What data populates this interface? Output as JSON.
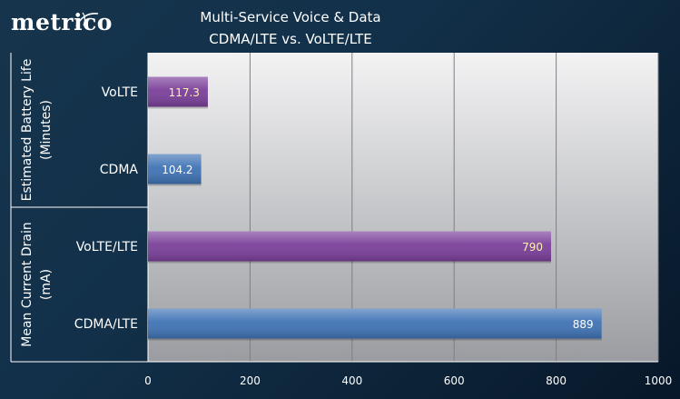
{
  "logo": {
    "text": "metrico"
  },
  "title": {
    "line1": "Multi-Service Voice & Data",
    "line2": "CDMA/LTE  vs. VoLTE/LTE"
  },
  "colors": {
    "volte": "#7a3f9a",
    "cdma": "#3f73b5",
    "plot_bg_top": "#f3f3f4",
    "plot_bg_bottom": "#9a9ca1",
    "grid": "#7f7f84",
    "value_volte": "#fff3b0",
    "value_cdma": "#ffffff"
  },
  "chart_data": {
    "type": "bar",
    "orientation": "horizontal",
    "title": "Multi-Service Voice & Data CDMA/LTE  vs. VoLTE/LTE",
    "xlim": [
      0,
      1000
    ],
    "xticks": [
      0,
      200,
      400,
      600,
      800,
      1000
    ],
    "grid": true,
    "groups": [
      {
        "label": "Estimated Battery Life (Minutes)",
        "label_lines": [
          "Estimated Battery Life",
          "(Minutes)"
        ],
        "bars": [
          {
            "category": "VoLTE",
            "value": 117.3,
            "value_label": "117.3",
            "color": "#7a3f9a"
          },
          {
            "category": "CDMA",
            "value": 104.2,
            "value_label": "104.2",
            "color": "#3f73b5"
          }
        ]
      },
      {
        "label": "Mean Current Drain (mA)",
        "label_lines": [
          "Mean Current Drain",
          "(mA)"
        ],
        "bars": [
          {
            "category": "VoLTE/LTE",
            "value": 790,
            "value_label": "790",
            "color": "#7a3f9a"
          },
          {
            "category": "CDMA/LTE",
            "value": 889,
            "value_label": "889",
            "color": "#3f73b5"
          }
        ]
      }
    ]
  }
}
